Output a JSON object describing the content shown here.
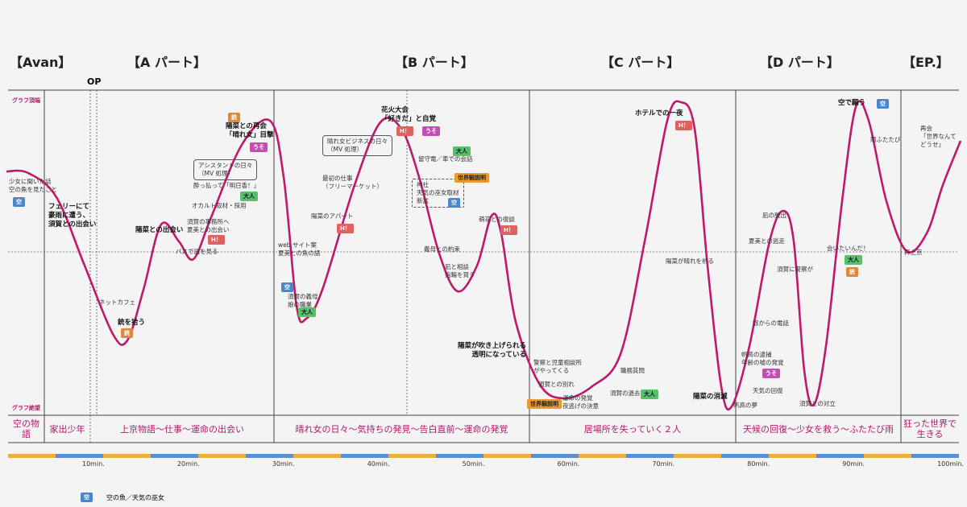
{
  "sections": [
    "【Avan】",
    "【A パート】",
    "【B パート】",
    "【C パート】",
    "【D パート】",
    "【EP.】"
  ],
  "op": "OP",
  "axis_top": "グラフ頂端",
  "axis_bottom": "グラフ絶望",
  "bottom_labels": [
    "空の物語",
    "家出少年",
    "上京物語～仕事～運命の出会い",
    "晴れ女の日々～気持ちの発見～告白直前～運命の発覚",
    "居場所を失っていく２人",
    "天候の回復～少女を救う～ふたたび雨",
    "狂った世界で生きる"
  ],
  "time_labels": [
    "10min.",
    "20min.",
    "30min.",
    "40min.",
    "50min.",
    "60min.",
    "70min.",
    "80min.",
    "90min.",
    "100min."
  ],
  "legend": {
    "badge": "空",
    "text": "空の魚／天気の巫女"
  },
  "annotations": [
    {
      "lines": [
        "少女に聞いた話",
        "空の魚を見たこと"
      ],
      "badges": [
        "空"
      ]
    },
    {
      "lines": [
        "フェリーにて",
        "豪雨に遭う、",
        "須賀との出会い"
      ],
      "badges": []
    },
    {
      "lines": [
        "ネットカフェ"
      ],
      "badges": []
    },
    {
      "lines": [
        "銃を拾う"
      ],
      "badges": [
        "銃"
      ]
    },
    {
      "lines": [
        "陽菜との出会い"
      ],
      "badges": []
    },
    {
      "lines": [
        "バスで凪を見る"
      ],
      "badges": []
    },
    {
      "lines": [
        "須賀の事務所へ",
        "夏美との出会い"
      ],
      "badges": [
        "H！"
      ]
    },
    {
      "lines": [
        "オカルト取材・採用"
      ],
      "badges": [
        "大人"
      ]
    },
    {
      "lines": [
        "酔っ払って「明日香！」"
      ],
      "badges": []
    },
    {
      "lines": [
        "アシスタントの日々",
        "（MV 処理）"
      ],
      "badges": []
    },
    {
      "lines": [
        "陽菜との再会",
        "「晴れ女」目撃"
      ],
      "badges": [
        "銃",
        "うそ"
      ]
    },
    {
      "lines": [
        "web サイト案",
        "夏美との魚の語"
      ],
      "badges": []
    },
    {
      "lines": [
        "須賀の義母",
        "娘の職業"
      ],
      "badges": [
        "空",
        "大人"
      ]
    },
    {
      "lines": [
        "陽菜のアパート"
      ],
      "badges": [
        "H！"
      ]
    },
    {
      "lines": [
        "最初の仕事",
        "（フリーマーケット）"
      ],
      "badges": []
    },
    {
      "lines": [
        "晴れ女ビジネスの日々",
        "（MV 処理）"
      ],
      "badges": []
    },
    {
      "lines": [
        "花火大会",
        "「好きだ」と自覚"
      ],
      "badges": [
        "H！",
        "うそ"
      ]
    },
    {
      "lines": [
        "留守電／車での会話"
      ],
      "badges": [
        "大人"
      ]
    },
    {
      "lines": [
        "神社",
        "天気の巫女取材",
        "新盆"
      ],
      "badges": [
        "世界観説明",
        "空"
      ]
    },
    {
      "lines": [
        "義母との約束"
      ],
      "badges": []
    },
    {
      "lines": [
        "凪と相談",
        "指輪を買う"
      ],
      "badges": []
    },
    {
      "lines": [
        "萌花との復談"
      ],
      "badges": [
        "H！"
      ]
    },
    {
      "lines": [
        "陽菜が吹き上げられる",
        "透明になっている"
      ],
      "badges": []
    },
    {
      "lines": [
        "警察と児童相談所",
        "がやってくる"
      ],
      "badges": []
    },
    {
      "lines": [
        "須賀との別れ"
      ],
      "badges": []
    },
    {
      "lines": [
        "運命の発覚",
        "夜逃げの決意"
      ],
      "badges": [
        "世界観説明"
      ]
    },
    {
      "lines": [
        "ホテルでの一夜"
      ],
      "badges": [
        "H！"
      ]
    },
    {
      "lines": [
        "陽菜が晴れを祈る"
      ],
      "badges": []
    },
    {
      "lines": [
        "職務質問"
      ],
      "badges": []
    },
    {
      "lines": [
        "須賀の過去"
      ],
      "badges": [
        "大人"
      ]
    },
    {
      "lines": [
        "陽菜の消滅"
      ],
      "badges": []
    },
    {
      "lines": [
        "帆高の夢"
      ],
      "badges": []
    },
    {
      "lines": [
        "空で願う"
      ],
      "badges": [
        "空"
      ]
    },
    {
      "lines": [
        "雨ふたたび"
      ],
      "badges": []
    },
    {
      "lines": [
        "再会",
        "「世界なんて",
        "どうせ」"
      ],
      "badges": []
    },
    {
      "lines": [
        "再上京"
      ],
      "badges": []
    },
    {
      "lines": [
        "凪の脱出"
      ],
      "badges": []
    },
    {
      "lines": [
        "夏美との逃走"
      ],
      "badges": []
    },
    {
      "lines": [
        "須賀に警察が"
      ],
      "badges": []
    },
    {
      "lines": [
        "会いたいんだ！"
      ],
      "badges": [
        "大人",
        "銃"
      ]
    },
    {
      "lines": [
        "旅からの電話"
      ],
      "badges": []
    },
    {
      "lines": [
        "帆高の逮捕",
        "年齢の嘘の発覚"
      ],
      "badges": [
        "うそ"
      ]
    },
    {
      "lines": [
        "天気の回復"
      ],
      "badges": []
    },
    {
      "lines": [
        "須賀との対立"
      ],
      "badges": []
    }
  ]
}
